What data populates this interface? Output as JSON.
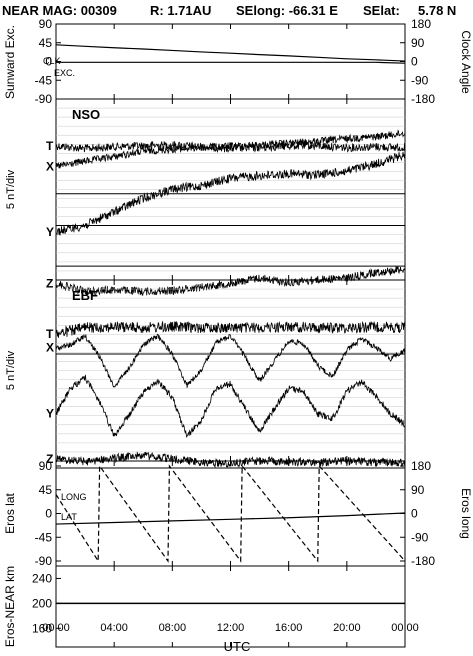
{
  "header": {
    "mission": "NEAR MAG: 00309",
    "radius": "R: 1.71AU",
    "selong": "SElong:  -66.31 E",
    "selat": "SElat:",
    "selat_value": "5.78 N"
  },
  "colors": {
    "background": "#ffffff",
    "ink": "#000000"
  },
  "chart_data": [
    {
      "type": "line",
      "panel": "orientation",
      "ylabel": "Sunward Exc.",
      "ylabel_right": "Clock Angle",
      "yticks": [
        "90",
        "45",
        "0",
        "-45",
        "-90"
      ],
      "yticks_right": [
        "180",
        "90",
        "0",
        "-90",
        "-180"
      ],
      "ylim": [
        -90,
        90
      ],
      "series": [
        {
          "name": "CLK",
          "axis": "right",
          "style": "solid",
          "x": [
            0,
            2,
            4,
            6,
            8,
            10,
            12,
            14,
            16,
            18,
            20,
            22,
            24
          ],
          "values": [
            80,
            73,
            66,
            60,
            53,
            46,
            40,
            33,
            27,
            20,
            13,
            8,
            2
          ]
        },
        {
          "name": "EXC.",
          "axis": "left",
          "style": "solid",
          "x": [
            0,
            6,
            12,
            18,
            20,
            22,
            24
          ],
          "values": [
            -2,
            -2,
            -2,
            -2,
            -2,
            -2,
            -4
          ]
        }
      ]
    },
    {
      "type": "line",
      "panel": "NSO",
      "title": "NSO",
      "ylabel": "5 nT/div",
      "traces": [
        {
          "name": "T",
          "noise": 0.9,
          "x": [
            0,
            2,
            4,
            6,
            8,
            10,
            12,
            14,
            16,
            18,
            20,
            22,
            24
          ],
          "values": [
            0.2,
            0.5,
            0.3,
            0.2,
            0.1,
            0.3,
            0.5,
            0.4,
            0.2,
            0.2,
            0.4,
            0.3,
            0.4
          ]
        },
        {
          "name": "X",
          "noise": 0.8,
          "x": [
            0,
            2,
            4,
            6,
            8,
            10,
            12,
            14,
            16,
            18,
            20,
            22,
            24
          ],
          "values": [
            2.5,
            1.9,
            1.4,
            0.8,
            0.6,
            0.4,
            0.2,
            0.1,
            -0.1,
            -0.3,
            -0.6,
            -0.8,
            -1.2
          ]
        },
        {
          "name": "Y",
          "noise": 1.0,
          "x": [
            0,
            2,
            4,
            6,
            8,
            10,
            12,
            14,
            16,
            18,
            20,
            22,
            24
          ],
          "values": [
            9.7,
            9.0,
            7.5,
            6.0,
            5.0,
            4.6,
            3.8,
            3.5,
            3.3,
            3.4,
            3.0,
            2.2,
            1.2
          ]
        },
        {
          "name": "Z",
          "noise": 0.9,
          "x": [
            0,
            2,
            4,
            6,
            8,
            10,
            12,
            14,
            16,
            18,
            20,
            22,
            24
          ],
          "values": [
            15.4,
            16.3,
            16.1,
            16.3,
            16.2,
            15.8,
            15.4,
            14.8,
            15.3,
            15.0,
            14.8,
            14.2,
            13.8
          ]
        }
      ],
      "baselines": [
        5.5,
        9.0,
        13.5
      ],
      "grid": true
    },
    {
      "type": "line",
      "panel": "EBF",
      "title": "EBF",
      "ylabel": "5 nT/div",
      "traces": [
        {
          "name": "T",
          "noise": 1.2,
          "x": [
            0,
            2,
            4,
            6,
            8,
            10,
            12,
            14,
            16,
            18,
            20,
            22,
            24
          ],
          "values": [
            1.0,
            0.3,
            0.2,
            0.3,
            0.2,
            0.3,
            0.3,
            0.3,
            0.2,
            0.3,
            0.3,
            0.2,
            0.3
          ]
        },
        {
          "name": "X",
          "x": [
            0,
            1,
            2,
            3,
            4,
            5,
            6,
            7,
            8,
            9,
            10,
            11,
            12,
            13,
            14,
            15,
            16,
            17,
            18,
            19,
            20,
            21,
            22,
            23,
            24
          ],
          "values": [
            2.5,
            2.2,
            1.2,
            3.5,
            6.8,
            4.8,
            2.2,
            1.2,
            3.2,
            6.7,
            5.0,
            2.0,
            1.2,
            3.5,
            6.2,
            4.0,
            1.8,
            2.0,
            4.5,
            5.7,
            2.8,
            1.5,
            2.5,
            3.7,
            2.8
          ],
          "noise": 0.6
        },
        {
          "name": "Y",
          "x": [
            0,
            1,
            2,
            3,
            4,
            5,
            6,
            7,
            8,
            9,
            10,
            11,
            12,
            13,
            14,
            15,
            16,
            17,
            18,
            19,
            20,
            21,
            22,
            23,
            24
          ],
          "values": [
            9.8,
            7.0,
            5.8,
            8.5,
            12.3,
            10.0,
            7.5,
            6.2,
            8.0,
            12.3,
            10.5,
            7.0,
            6.5,
            9.2,
            11.8,
            9.3,
            7.0,
            7.3,
            9.8,
            10.4,
            7.3,
            6.3,
            7.8,
            9.8,
            11.0
          ],
          "noise": 0.7
        },
        {
          "name": "Z",
          "noise": 0.9,
          "x": [
            0,
            2,
            4,
            6,
            8,
            10,
            12,
            14,
            16,
            18,
            20,
            22,
            24
          ],
          "values": [
            14.8,
            15.1,
            14.7,
            14.4,
            14.8,
            15.2,
            15.3,
            15.0,
            15.1,
            15.2,
            15.0,
            15.2,
            15.2
          ]
        }
      ],
      "baselines": [
        3.2,
        15.8
      ],
      "grid": true
    },
    {
      "type": "line",
      "panel": "eros-position",
      "ylabel": "Eros lat",
      "ylabel_right": "Eros long",
      "yticks": [
        "90",
        "45",
        "0",
        "-45",
        "-90"
      ],
      "yticks_right": [
        "180",
        "90",
        "0",
        "-90",
        "-180"
      ],
      "ylim": [
        -90,
        90
      ],
      "series": [
        {
          "name": "LONG",
          "axis": "right",
          "style": "dashed",
          "x": [
            0,
            2.9,
            3.0,
            7.7,
            7.8,
            12.7,
            12.8,
            18.0,
            18.1,
            24
          ],
          "values": [
            72,
            -180,
            180,
            -180,
            180,
            -180,
            180,
            -180,
            180,
            -180
          ]
        },
        {
          "name": "LAT",
          "axis": "left",
          "style": "solid",
          "x": [
            0,
            4,
            8,
            12,
            16,
            20,
            24
          ],
          "values": [
            -20,
            -17,
            -14,
            -11,
            -8,
            -4,
            1
          ]
        }
      ]
    },
    {
      "type": "line",
      "panel": "range",
      "ylabel": "Eros-NEAR km",
      "yticks": [
        "240",
        "200",
        "160"
      ],
      "ylim": [
        130,
        260
      ],
      "series": [
        {
          "name": "Eros-NEAR km",
          "style": "solid",
          "x": [
            0,
            24
          ],
          "values": [
            200,
            200
          ]
        }
      ]
    }
  ],
  "xaxis": {
    "label": "UTC",
    "ticks": [
      "00:00",
      "04:00",
      "08:00",
      "12:00",
      "16:00",
      "20:00",
      "00:00"
    ],
    "xlim": [
      0,
      24
    ]
  }
}
